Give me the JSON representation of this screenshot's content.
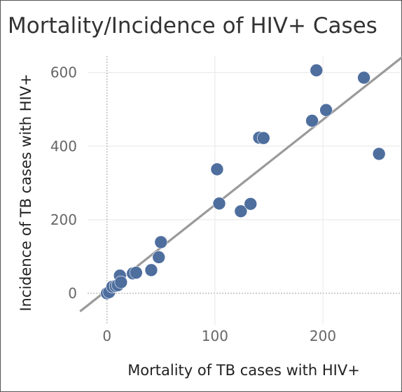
{
  "chart_data": {
    "type": "scatter",
    "title": "Mortality/Incidence of HIV+ Cases",
    "xlabel": "Mortality of TB cases with HIV+",
    "ylabel": "Incidence of TB cases with HIV+",
    "xlim": [
      -18,
      272
    ],
    "ylim": [
      -40,
      645
    ],
    "x_ticks": [
      0,
      100,
      200
    ],
    "y_ticks": [
      0,
      200,
      400,
      600
    ],
    "grid": true,
    "trendline": true,
    "colors": {
      "points": "#4e6e9e",
      "trend": "#9a9a9a",
      "grid": "#ebebeb",
      "zero": "#b0b0b0"
    },
    "points": [
      {
        "x": 0,
        "y": 0
      },
      {
        "x": 2,
        "y": 3
      },
      {
        "x": 5,
        "y": 18
      },
      {
        "x": 8,
        "y": 20
      },
      {
        "x": 10,
        "y": 22
      },
      {
        "x": 12,
        "y": 48
      },
      {
        "x": 13,
        "y": 30
      },
      {
        "x": 24,
        "y": 54
      },
      {
        "x": 27,
        "y": 56
      },
      {
        "x": 41,
        "y": 63
      },
      {
        "x": 48,
        "y": 98
      },
      {
        "x": 50,
        "y": 139
      },
      {
        "x": 102,
        "y": 337
      },
      {
        "x": 104,
        "y": 244
      },
      {
        "x": 124,
        "y": 223
      },
      {
        "x": 133,
        "y": 243
      },
      {
        "x": 141,
        "y": 423
      },
      {
        "x": 145,
        "y": 422
      },
      {
        "x": 190,
        "y": 469
      },
      {
        "x": 194,
        "y": 606
      },
      {
        "x": 203,
        "y": 498
      },
      {
        "x": 238,
        "y": 586
      },
      {
        "x": 252,
        "y": 379
      }
    ]
  }
}
